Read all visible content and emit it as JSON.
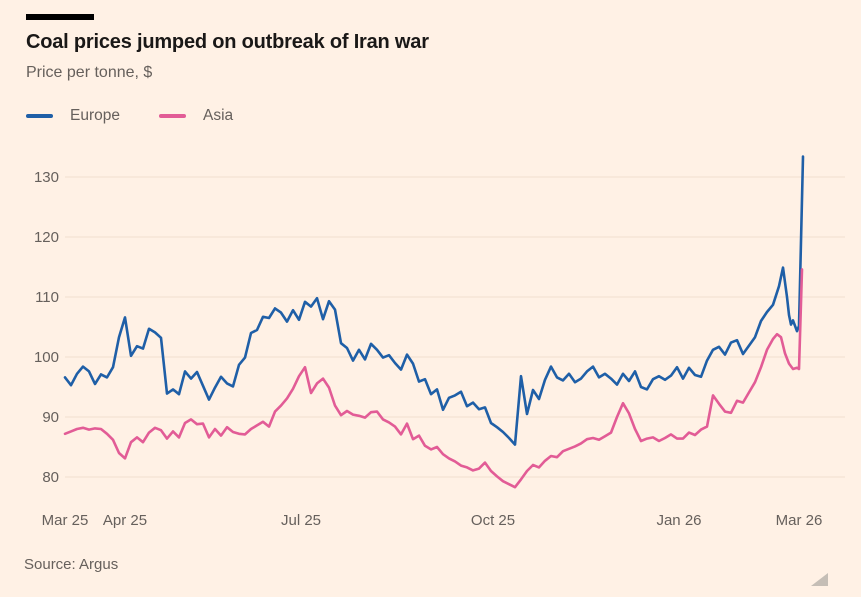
{
  "colors": {
    "background": "#fff1e5",
    "accent_bar": "#000000",
    "title_text": "#1a1817",
    "secondary_text": "#66605c",
    "gridline": "#f2e0d0",
    "resize_handle": "#c5beb6"
  },
  "chart_data": {
    "type": "line",
    "title": "Coal prices jumped on outbreak of Iran war",
    "subtitle": "Price per tonne, $",
    "source": "Source: Argus",
    "x_domain_days": [
      0,
      369
    ],
    "ylim": [
      76,
      135
    ],
    "yticks": [
      80,
      90,
      100,
      110,
      120,
      130
    ],
    "xticks": [
      {
        "label": "Mar 25",
        "day": 0
      },
      {
        "label": "Apr 25",
        "day": 30
      },
      {
        "label": "Jul 25",
        "day": 118
      },
      {
        "label": "Oct 25",
        "day": 214
      },
      {
        "label": "Jan 26",
        "day": 307
      },
      {
        "label": "Mar 26",
        "day": 367
      }
    ],
    "grid": "horizontal",
    "legend_position": "top-left",
    "series": [
      {
        "name": "Europe",
        "color": "#1f5fa7",
        "points": [
          [
            0,
            96.6
          ],
          [
            3,
            95.3
          ],
          [
            6,
            97.2
          ],
          [
            9,
            98.4
          ],
          [
            12,
            97.6
          ],
          [
            15,
            95.5
          ],
          [
            18,
            97.1
          ],
          [
            21,
            96.6
          ],
          [
            24,
            98.3
          ],
          [
            27,
            103.3
          ],
          [
            30,
            106.6
          ],
          [
            33,
            100.2
          ],
          [
            36,
            101.8
          ],
          [
            39,
            101.4
          ],
          [
            42,
            104.7
          ],
          [
            45,
            104.1
          ],
          [
            48,
            103.2
          ],
          [
            51,
            93.9
          ],
          [
            54,
            94.6
          ],
          [
            57,
            93.8
          ],
          [
            60,
            97.6
          ],
          [
            63,
            96.4
          ],
          [
            66,
            97.5
          ],
          [
            69,
            95.2
          ],
          [
            72,
            92.9
          ],
          [
            75,
            94.9
          ],
          [
            78,
            96.7
          ],
          [
            81,
            95.6
          ],
          [
            84,
            95.1
          ],
          [
            87,
            98.7
          ],
          [
            90,
            99.9
          ],
          [
            93,
            104.0
          ],
          [
            96,
            104.5
          ],
          [
            99,
            106.7
          ],
          [
            102,
            106.5
          ],
          [
            105,
            108.1
          ],
          [
            108,
            107.4
          ],
          [
            111,
            105.9
          ],
          [
            114,
            107.8
          ],
          [
            117,
            106.2
          ],
          [
            120,
            109.2
          ],
          [
            123,
            108.4
          ],
          [
            126,
            109.8
          ],
          [
            129,
            106.3
          ],
          [
            132,
            109.3
          ],
          [
            135,
            107.9
          ],
          [
            138,
            102.3
          ],
          [
            141,
            101.5
          ],
          [
            144,
            99.4
          ],
          [
            147,
            101.2
          ],
          [
            150,
            99.6
          ],
          [
            153,
            102.2
          ],
          [
            156,
            101.2
          ],
          [
            159,
            99.9
          ],
          [
            162,
            100.3
          ],
          [
            165,
            99.0
          ],
          [
            168,
            97.9
          ],
          [
            171,
            100.4
          ],
          [
            174,
            98.9
          ],
          [
            177,
            95.9
          ],
          [
            180,
            96.3
          ],
          [
            183,
            93.8
          ],
          [
            186,
            94.6
          ],
          [
            189,
            91.2
          ],
          [
            192,
            93.2
          ],
          [
            195,
            93.6
          ],
          [
            198,
            94.2
          ],
          [
            201,
            91.8
          ],
          [
            204,
            92.4
          ],
          [
            207,
            91.3
          ],
          [
            210,
            91.6
          ],
          [
            213,
            89.0
          ],
          [
            216,
            88.3
          ],
          [
            219,
            87.5
          ],
          [
            222,
            86.5
          ],
          [
            225,
            85.4
          ],
          [
            228,
            96.8
          ],
          [
            231,
            90.5
          ],
          [
            234,
            94.5
          ],
          [
            237,
            93.0
          ],
          [
            240,
            96.2
          ],
          [
            243,
            98.4
          ],
          [
            246,
            96.6
          ],
          [
            249,
            96.1
          ],
          [
            252,
            97.2
          ],
          [
            255,
            95.8
          ],
          [
            258,
            96.4
          ],
          [
            261,
            97.6
          ],
          [
            264,
            98.4
          ],
          [
            267,
            96.6
          ],
          [
            270,
            97.2
          ],
          [
            273,
            96.4
          ],
          [
            276,
            95.4
          ],
          [
            279,
            97.2
          ],
          [
            282,
            96.0
          ],
          [
            285,
            97.6
          ],
          [
            288,
            95.0
          ],
          [
            291,
            94.6
          ],
          [
            294,
            96.3
          ],
          [
            297,
            96.8
          ],
          [
            300,
            96.2
          ],
          [
            303,
            96.9
          ],
          [
            306,
            98.3
          ],
          [
            309,
            96.4
          ],
          [
            312,
            98.2
          ],
          [
            315,
            97.0
          ],
          [
            318,
            96.7
          ],
          [
            321,
            99.4
          ],
          [
            324,
            101.2
          ],
          [
            327,
            101.7
          ],
          [
            330,
            100.4
          ],
          [
            333,
            102.4
          ],
          [
            336,
            102.8
          ],
          [
            339,
            100.5
          ],
          [
            342,
            101.9
          ],
          [
            345,
            103.3
          ],
          [
            348,
            106.0
          ],
          [
            351,
            107.5
          ],
          [
            354,
            108.7
          ],
          [
            357,
            111.8
          ],
          [
            359,
            114.9
          ],
          [
            361,
            110.0
          ],
          [
            362,
            107.0
          ],
          [
            363,
            105.4
          ],
          [
            364,
            106.1
          ],
          [
            366,
            104.3
          ],
          [
            367,
            105.2
          ],
          [
            369,
            133.4
          ]
        ]
      },
      {
        "name": "Asia",
        "color": "#e25c96",
        "points": [
          [
            0,
            87.2
          ],
          [
            3,
            87.6
          ],
          [
            6,
            88.0
          ],
          [
            9,
            88.2
          ],
          [
            12,
            87.9
          ],
          [
            15,
            88.1
          ],
          [
            18,
            88.0
          ],
          [
            21,
            87.2
          ],
          [
            24,
            86.2
          ],
          [
            27,
            84.0
          ],
          [
            30,
            83.1
          ],
          [
            33,
            85.8
          ],
          [
            36,
            86.6
          ],
          [
            39,
            85.8
          ],
          [
            42,
            87.4
          ],
          [
            45,
            88.2
          ],
          [
            48,
            87.8
          ],
          [
            51,
            86.4
          ],
          [
            54,
            87.6
          ],
          [
            57,
            86.6
          ],
          [
            60,
            89.0
          ],
          [
            63,
            89.6
          ],
          [
            66,
            88.8
          ],
          [
            69,
            88.9
          ],
          [
            72,
            86.6
          ],
          [
            75,
            88.0
          ],
          [
            78,
            86.9
          ],
          [
            81,
            88.3
          ],
          [
            84,
            87.5
          ],
          [
            87,
            87.2
          ],
          [
            90,
            87.1
          ],
          [
            93,
            88.0
          ],
          [
            96,
            88.6
          ],
          [
            99,
            89.2
          ],
          [
            102,
            88.4
          ],
          [
            105,
            90.9
          ],
          [
            108,
            91.9
          ],
          [
            111,
            93.1
          ],
          [
            114,
            94.7
          ],
          [
            117,
            96.8
          ],
          [
            120,
            98.3
          ],
          [
            123,
            94.0
          ],
          [
            126,
            95.6
          ],
          [
            129,
            96.4
          ],
          [
            132,
            94.9
          ],
          [
            135,
            91.9
          ],
          [
            138,
            90.3
          ],
          [
            141,
            91.0
          ],
          [
            144,
            90.4
          ],
          [
            147,
            90.2
          ],
          [
            150,
            89.9
          ],
          [
            153,
            90.8
          ],
          [
            156,
            90.9
          ],
          [
            159,
            89.6
          ],
          [
            162,
            89.1
          ],
          [
            165,
            88.4
          ],
          [
            168,
            87.1
          ],
          [
            171,
            88.9
          ],
          [
            174,
            86.3
          ],
          [
            177,
            86.9
          ],
          [
            180,
            85.2
          ],
          [
            183,
            84.6
          ],
          [
            186,
            85.0
          ],
          [
            189,
            83.8
          ],
          [
            192,
            83.1
          ],
          [
            195,
            82.6
          ],
          [
            198,
            81.9
          ],
          [
            201,
            81.6
          ],
          [
            204,
            81.1
          ],
          [
            207,
            81.4
          ],
          [
            210,
            82.4
          ],
          [
            213,
            81.0
          ],
          [
            216,
            80.1
          ],
          [
            219,
            79.3
          ],
          [
            222,
            78.8
          ],
          [
            225,
            78.3
          ],
          [
            228,
            79.6
          ],
          [
            231,
            81.0
          ],
          [
            234,
            82.0
          ],
          [
            237,
            81.6
          ],
          [
            240,
            82.7
          ],
          [
            243,
            83.5
          ],
          [
            246,
            83.3
          ],
          [
            249,
            84.3
          ],
          [
            252,
            84.7
          ],
          [
            255,
            85.1
          ],
          [
            258,
            85.6
          ],
          [
            261,
            86.3
          ],
          [
            264,
            86.5
          ],
          [
            267,
            86.2
          ],
          [
            270,
            86.8
          ],
          [
            273,
            87.4
          ],
          [
            276,
            90.0
          ],
          [
            279,
            92.3
          ],
          [
            282,
            90.6
          ],
          [
            285,
            88.0
          ],
          [
            288,
            86.0
          ],
          [
            291,
            86.4
          ],
          [
            294,
            86.6
          ],
          [
            297,
            86.0
          ],
          [
            300,
            86.5
          ],
          [
            303,
            87.1
          ],
          [
            306,
            86.4
          ],
          [
            309,
            86.4
          ],
          [
            312,
            87.4
          ],
          [
            315,
            87.0
          ],
          [
            318,
            87.9
          ],
          [
            321,
            88.4
          ],
          [
            324,
            93.6
          ],
          [
            327,
            92.2
          ],
          [
            330,
            90.9
          ],
          [
            333,
            90.7
          ],
          [
            336,
            92.7
          ],
          [
            339,
            92.4
          ],
          [
            342,
            94.1
          ],
          [
            345,
            95.8
          ],
          [
            348,
            98.3
          ],
          [
            351,
            101.2
          ],
          [
            354,
            103.0
          ],
          [
            356,
            103.8
          ],
          [
            358,
            103.3
          ],
          [
            360,
            100.6
          ],
          [
            362,
            98.9
          ],
          [
            364,
            98.0
          ],
          [
            366,
            98.2
          ],
          [
            367,
            98.0
          ],
          [
            368.5,
            114.6
          ]
        ]
      }
    ]
  }
}
